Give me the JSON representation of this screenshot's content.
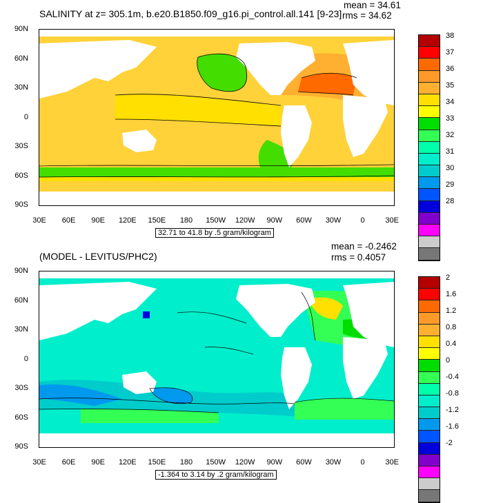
{
  "top_panel": {
    "title": "SALINITY at z= 305.1m, b.e20.B1850.f09_g16.pi_control.all.141 [9-23]",
    "mean": "mean = 34.61",
    "rms": "rms = 34.62",
    "info": "32.71 to 41.8 by .5 gram/kilogram",
    "legend_labels": [
      "38",
      "37",
      "36",
      "35",
      "34",
      "33",
      "32",
      "31",
      "30",
      "29",
      "28"
    ],
    "legend_colors": [
      "#b40000",
      "#ff0000",
      "#ff6a00",
      "#ff9a2a",
      "#ffb030",
      "#ffe000",
      "#ffff00",
      "#00dd00",
      "#33ff55",
      "#00ffaa",
      "#00eecc",
      "#00cccc",
      "#0099ee",
      "#0055ff",
      "#0000dd",
      "#8000cc",
      "#ff00ff",
      "#cccccc",
      "#777777"
    ]
  },
  "bottom_panel": {
    "title": "(MODEL - LEVITUS/PHC2)",
    "mean": "mean = -0.2462",
    "rms": "rms = 0.4057",
    "info": "-1.364 to 3.14 by .2 gram/kilogram",
    "legend_labels": [
      "2",
      "1.6",
      "1.2",
      "0.8",
      "0.4",
      "0",
      "-0.4",
      "-0.8",
      "-1.2",
      "-1.6",
      "-2"
    ],
    "legend_colors": [
      "#b40000",
      "#ff0000",
      "#ff6a00",
      "#ff9a2a",
      "#ffb030",
      "#ffe000",
      "#ffff00",
      "#00dd00",
      "#33ff55",
      "#00ffaa",
      "#00eecc",
      "#00cccc",
      "#0099ee",
      "#0055ff",
      "#0000dd",
      "#8000cc",
      "#ff00ff",
      "#cccccc",
      "#777777"
    ]
  },
  "lat_labels": [
    "90N",
    "60N",
    "30N",
    "0",
    "30S",
    "60S",
    "90S"
  ],
  "lon_labels": [
    "30E",
    "60E",
    "90E",
    "120E",
    "150E",
    "180",
    "150W",
    "120W",
    "90W",
    "60W",
    "30W",
    "0",
    "30E"
  ]
}
